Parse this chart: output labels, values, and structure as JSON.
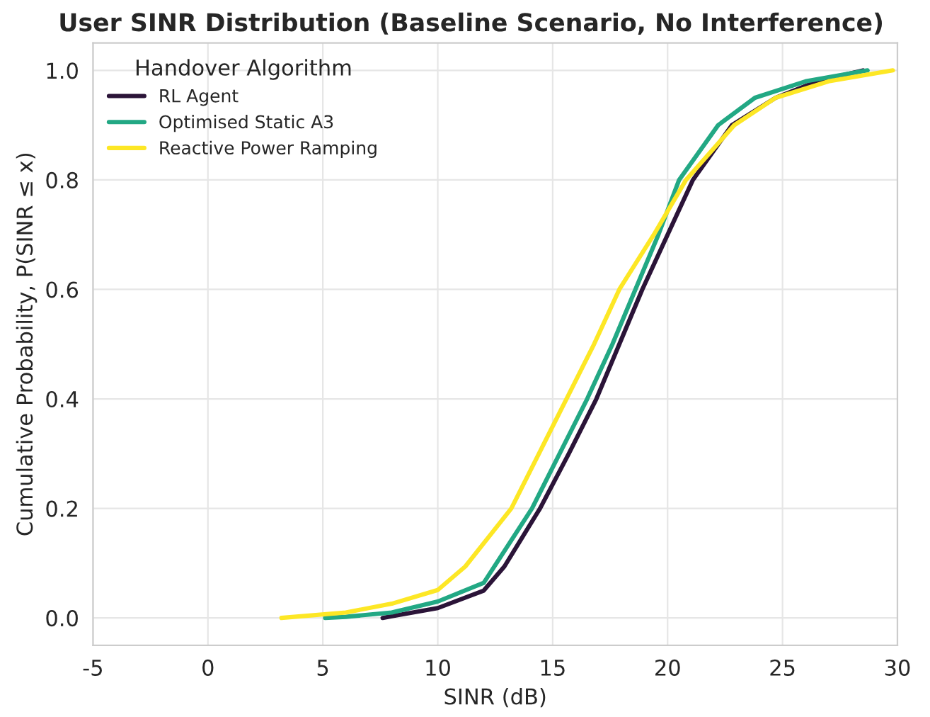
{
  "chart_data": {
    "type": "line",
    "title": "User SINR Distribution (Baseline Scenario, No Interference)",
    "xlabel": "SINR (dB)",
    "ylabel": "Cumulative Probability, P(SINR ≤ x)",
    "legend_title": "Handover Algorithm",
    "legend": "top left",
    "grid": true,
    "marker": "none",
    "line_style": "solid",
    "xlim": [
      -5,
      30
    ],
    "xticks": [
      -5,
      0,
      5,
      10,
      15,
      20,
      25,
      30
    ],
    "ylim": [
      -0.05,
      1.05
    ],
    "yticks": [
      {
        "value": 0,
        "label": "0.0"
      },
      {
        "value": 0.2,
        "label": "0.2"
      },
      {
        "value": 0.4,
        "label": "0.4"
      },
      {
        "value": 0.6,
        "label": "0.6"
      },
      {
        "value": 0.8,
        "label": "0.8"
      },
      {
        "value": 1,
        "label": "1.0"
      }
    ],
    "series": [
      {
        "name": "RL Agent",
        "color": "#2b1438",
        "x": [
          7.6,
          8,
          10,
          12,
          12.9,
          14.45,
          15.7,
          16.9,
          17.9,
          18.9,
          20,
          21.1,
          22.8,
          24.7,
          26.5,
          28.5
        ],
        "values": [
          0,
          0.003,
          0.018,
          0.05,
          0.094,
          0.2,
          0.3,
          0.4,
          0.5,
          0.6,
          0.7,
          0.8,
          0.9,
          0.95,
          0.98,
          1.0
        ]
      },
      {
        "name": "Optimised Static A3",
        "color": "#22a884",
        "x": [
          5.1,
          6,
          8,
          10,
          12,
          14.1,
          15.3,
          16.5,
          17.6,
          18.6,
          19.6,
          20.5,
          22.2,
          23.8,
          26,
          28.7
        ],
        "values": [
          0,
          0.002,
          0.01,
          0.03,
          0.064,
          0.2,
          0.3,
          0.4,
          0.5,
          0.6,
          0.7,
          0.8,
          0.9,
          0.95,
          0.98,
          1.0
        ]
      },
      {
        "name": "Reactive Power Ramping",
        "color": "#fde725",
        "x": [
          3.2,
          6,
          8,
          10,
          11.2,
          13.2,
          14.4,
          15.6,
          16.8,
          17.9,
          19.4,
          20.8,
          22.9,
          24.7,
          27,
          29.8
        ],
        "values": [
          0,
          0.01,
          0.026,
          0.051,
          0.094,
          0.2,
          0.3,
          0.4,
          0.5,
          0.6,
          0.7,
          0.8,
          0.9,
          0.95,
          0.98,
          1.0
        ]
      }
    ]
  }
}
